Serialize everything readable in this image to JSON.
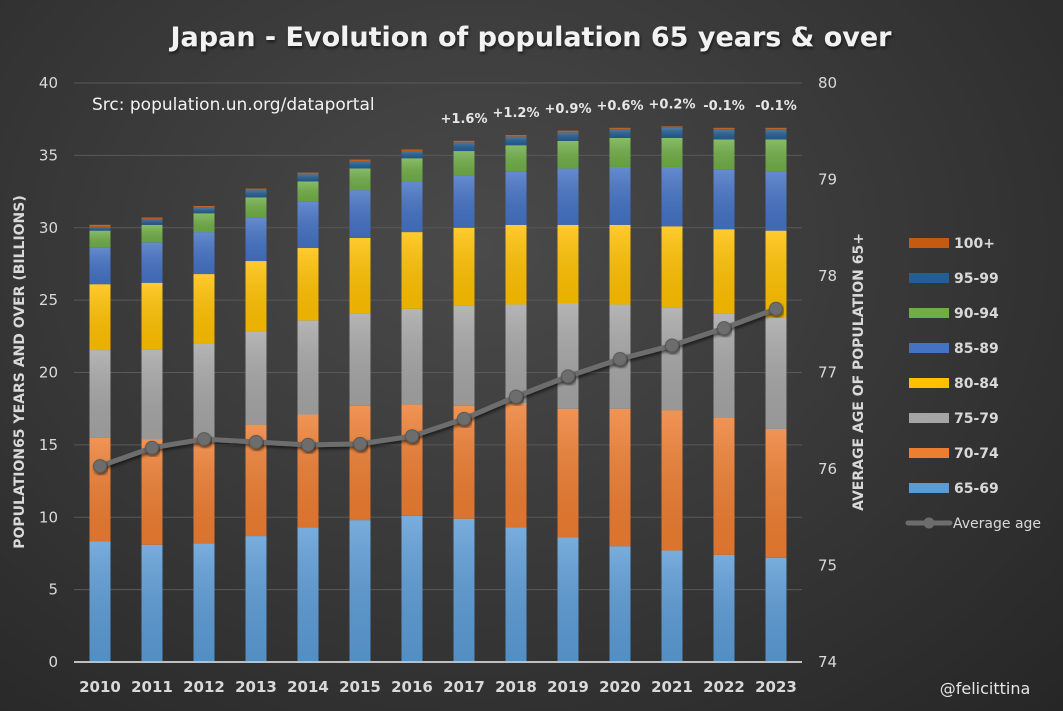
{
  "chart_data": {
    "type": "bar",
    "subtype": "stacked-bar-with-line",
    "title": "Japan - Evolution of population 65 years & over",
    "source_note": "Src: population.un.org/dataportal",
    "credit": "@felicittina",
    "xlabel": "",
    "ylabel": "POPULATION65 YEARS AND OVER (BILLIONS)",
    "y2label": "AVERAGE AGE OF POPULATION 65+",
    "ylim": [
      0,
      40
    ],
    "yticks": [
      0,
      5,
      10,
      15,
      20,
      25,
      30,
      35,
      40
    ],
    "y2lim": [
      74,
      80
    ],
    "y2ticks": [
      74,
      75,
      76,
      77,
      78,
      79,
      80
    ],
    "grid": true,
    "legend_position": "right",
    "categories": [
      "2010",
      "2011",
      "2012",
      "2013",
      "2014",
      "2015",
      "2016",
      "2017",
      "2018",
      "2019",
      "2020",
      "2021",
      "2022",
      "2023"
    ],
    "series": [
      {
        "name": "65-69",
        "color": "#5b9bd5",
        "values": [
          8.35,
          8.1,
          8.2,
          8.7,
          9.3,
          9.8,
          10.1,
          9.9,
          9.3,
          8.6,
          8.0,
          7.7,
          7.4,
          7.2
        ]
      },
      {
        "name": "70-74",
        "color": "#ed7d31",
        "values": [
          7.15,
          7.3,
          7.3,
          7.7,
          7.8,
          7.9,
          7.7,
          7.8,
          8.6,
          8.9,
          9.5,
          9.7,
          9.5,
          8.9
        ]
      },
      {
        "name": "75-79",
        "color": "#a5a5a5",
        "values": [
          6.05,
          6.2,
          6.5,
          6.4,
          6.5,
          6.4,
          6.6,
          6.9,
          6.8,
          7.3,
          7.2,
          7.1,
          7.2,
          7.7
        ]
      },
      {
        "name": "80-84",
        "color": "#ffc000",
        "values": [
          4.55,
          4.6,
          4.8,
          4.9,
          5.0,
          5.2,
          5.3,
          5.4,
          5.5,
          5.4,
          5.5,
          5.6,
          5.8,
          6.0
        ]
      },
      {
        "name": "85-89",
        "color": "#4472c4",
        "values": [
          2.55,
          2.8,
          2.9,
          3.0,
          3.2,
          3.3,
          3.5,
          3.6,
          3.7,
          3.9,
          4.0,
          4.1,
          4.1,
          4.1
        ]
      },
      {
        "name": "90-94",
        "color": "#70ad47",
        "values": [
          1.15,
          1.2,
          1.3,
          1.4,
          1.4,
          1.5,
          1.6,
          1.7,
          1.8,
          1.9,
          2.0,
          2.0,
          2.1,
          2.2
        ]
      },
      {
        "name": "95-99",
        "color": "#255e91",
        "values": [
          0.25,
          0.4,
          0.4,
          0.5,
          0.5,
          0.5,
          0.5,
          0.6,
          0.6,
          0.6,
          0.6,
          0.7,
          0.7,
          0.7
        ]
      },
      {
        "name": "100+",
        "color": "#c55a11",
        "values": [
          0.15,
          0.1,
          0.1,
          0.1,
          0.1,
          0.1,
          0.1,
          0.1,
          0.1,
          0.1,
          0.1,
          0.1,
          0.1,
          0.1
        ]
      }
    ],
    "line_series": {
      "name": "Average age",
      "axis": "right",
      "color": "#6d6d6d",
      "values": [
        76.03,
        76.22,
        76.31,
        76.28,
        76.25,
        76.26,
        76.34,
        76.52,
        76.75,
        76.96,
        77.14,
        77.28,
        77.46,
        77.66
      ]
    },
    "annotations": [
      {
        "category": "2017",
        "text": "+1.6%"
      },
      {
        "category": "2018",
        "text": "+1.2%"
      },
      {
        "category": "2019",
        "text": "+0.9%"
      },
      {
        "category": "2020",
        "text": "+0.6%"
      },
      {
        "category": "2021",
        "text": "+0.2%"
      },
      {
        "category": "2022",
        "text": "-0.1%"
      },
      {
        "category": "2023",
        "text": "-0.1%"
      }
    ],
    "legend_order": [
      "100+",
      "95-99",
      "90-94",
      "85-89",
      "80-84",
      "75-79",
      "70-74",
      "65-69",
      "Average age"
    ]
  }
}
